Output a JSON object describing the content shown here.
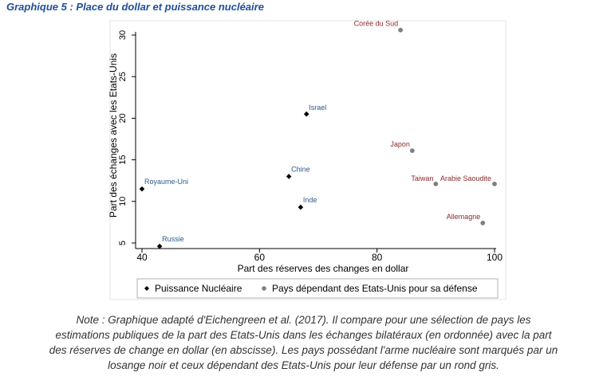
{
  "title": "Graphique 5 : Place du dollar et puissance nucléaire",
  "chart_data": {
    "type": "scatter",
    "title": "",
    "xlabel": "Part des réserves des changes en dollar",
    "ylabel": "Part des échanges avec les Etats-Unis",
    "xlim": [
      40,
      100
    ],
    "ylim": [
      4,
      31.5
    ],
    "xticks": [
      40,
      60,
      80,
      100
    ],
    "yticks": [
      5,
      10,
      15,
      20,
      25,
      30
    ],
    "grid": false,
    "legend_position": "bottom",
    "series": [
      {
        "name": "Puissance Nucléaire",
        "marker": "diamond",
        "color": "#000000",
        "label_color": "#2e5a8a",
        "points": [
          {
            "label": "Royaume-Uni",
            "x": 40,
            "y": 11.5
          },
          {
            "label": "Russie",
            "x": 43,
            "y": 4.6
          },
          {
            "label": "Chine",
            "x": 65,
            "y": 13
          },
          {
            "label": "Inde",
            "x": 67,
            "y": 9.3
          },
          {
            "label": "Israel",
            "x": 68,
            "y": 20.5
          }
        ]
      },
      {
        "name": "Pays dépendant des Etats-Unis pour sa défense",
        "marker": "circle",
        "color": "#7f7f7f",
        "label_color": "#8b2a2a",
        "points": [
          {
            "label": "Corée du Sud",
            "x": 84,
            "y": 30.6
          },
          {
            "label": "Japon",
            "x": 86,
            "y": 16.1
          },
          {
            "label": "Taiwan",
            "x": 90,
            "y": 12.1
          },
          {
            "label": "Arabie Saoudite",
            "x": 100,
            "y": 12.1
          },
          {
            "label": "Allemagne",
            "x": 98,
            "y": 7.4
          }
        ]
      }
    ]
  },
  "note": [
    "Note : Graphique adapté d'Eichengreen et al. (2017). Il compare pour une sélection de pays les",
    "estimations publiques de la part des Etats-Unis dans les échanges bilatéraux (en ordonnée) avec la part",
    "des réserves de change en dollar (en abscisse). Les pays possédant l'arme nucléaire sont marqués par un",
    "losange noir et ceux dépendant des Etats-Unis pour leur défense par un rond gris."
  ]
}
